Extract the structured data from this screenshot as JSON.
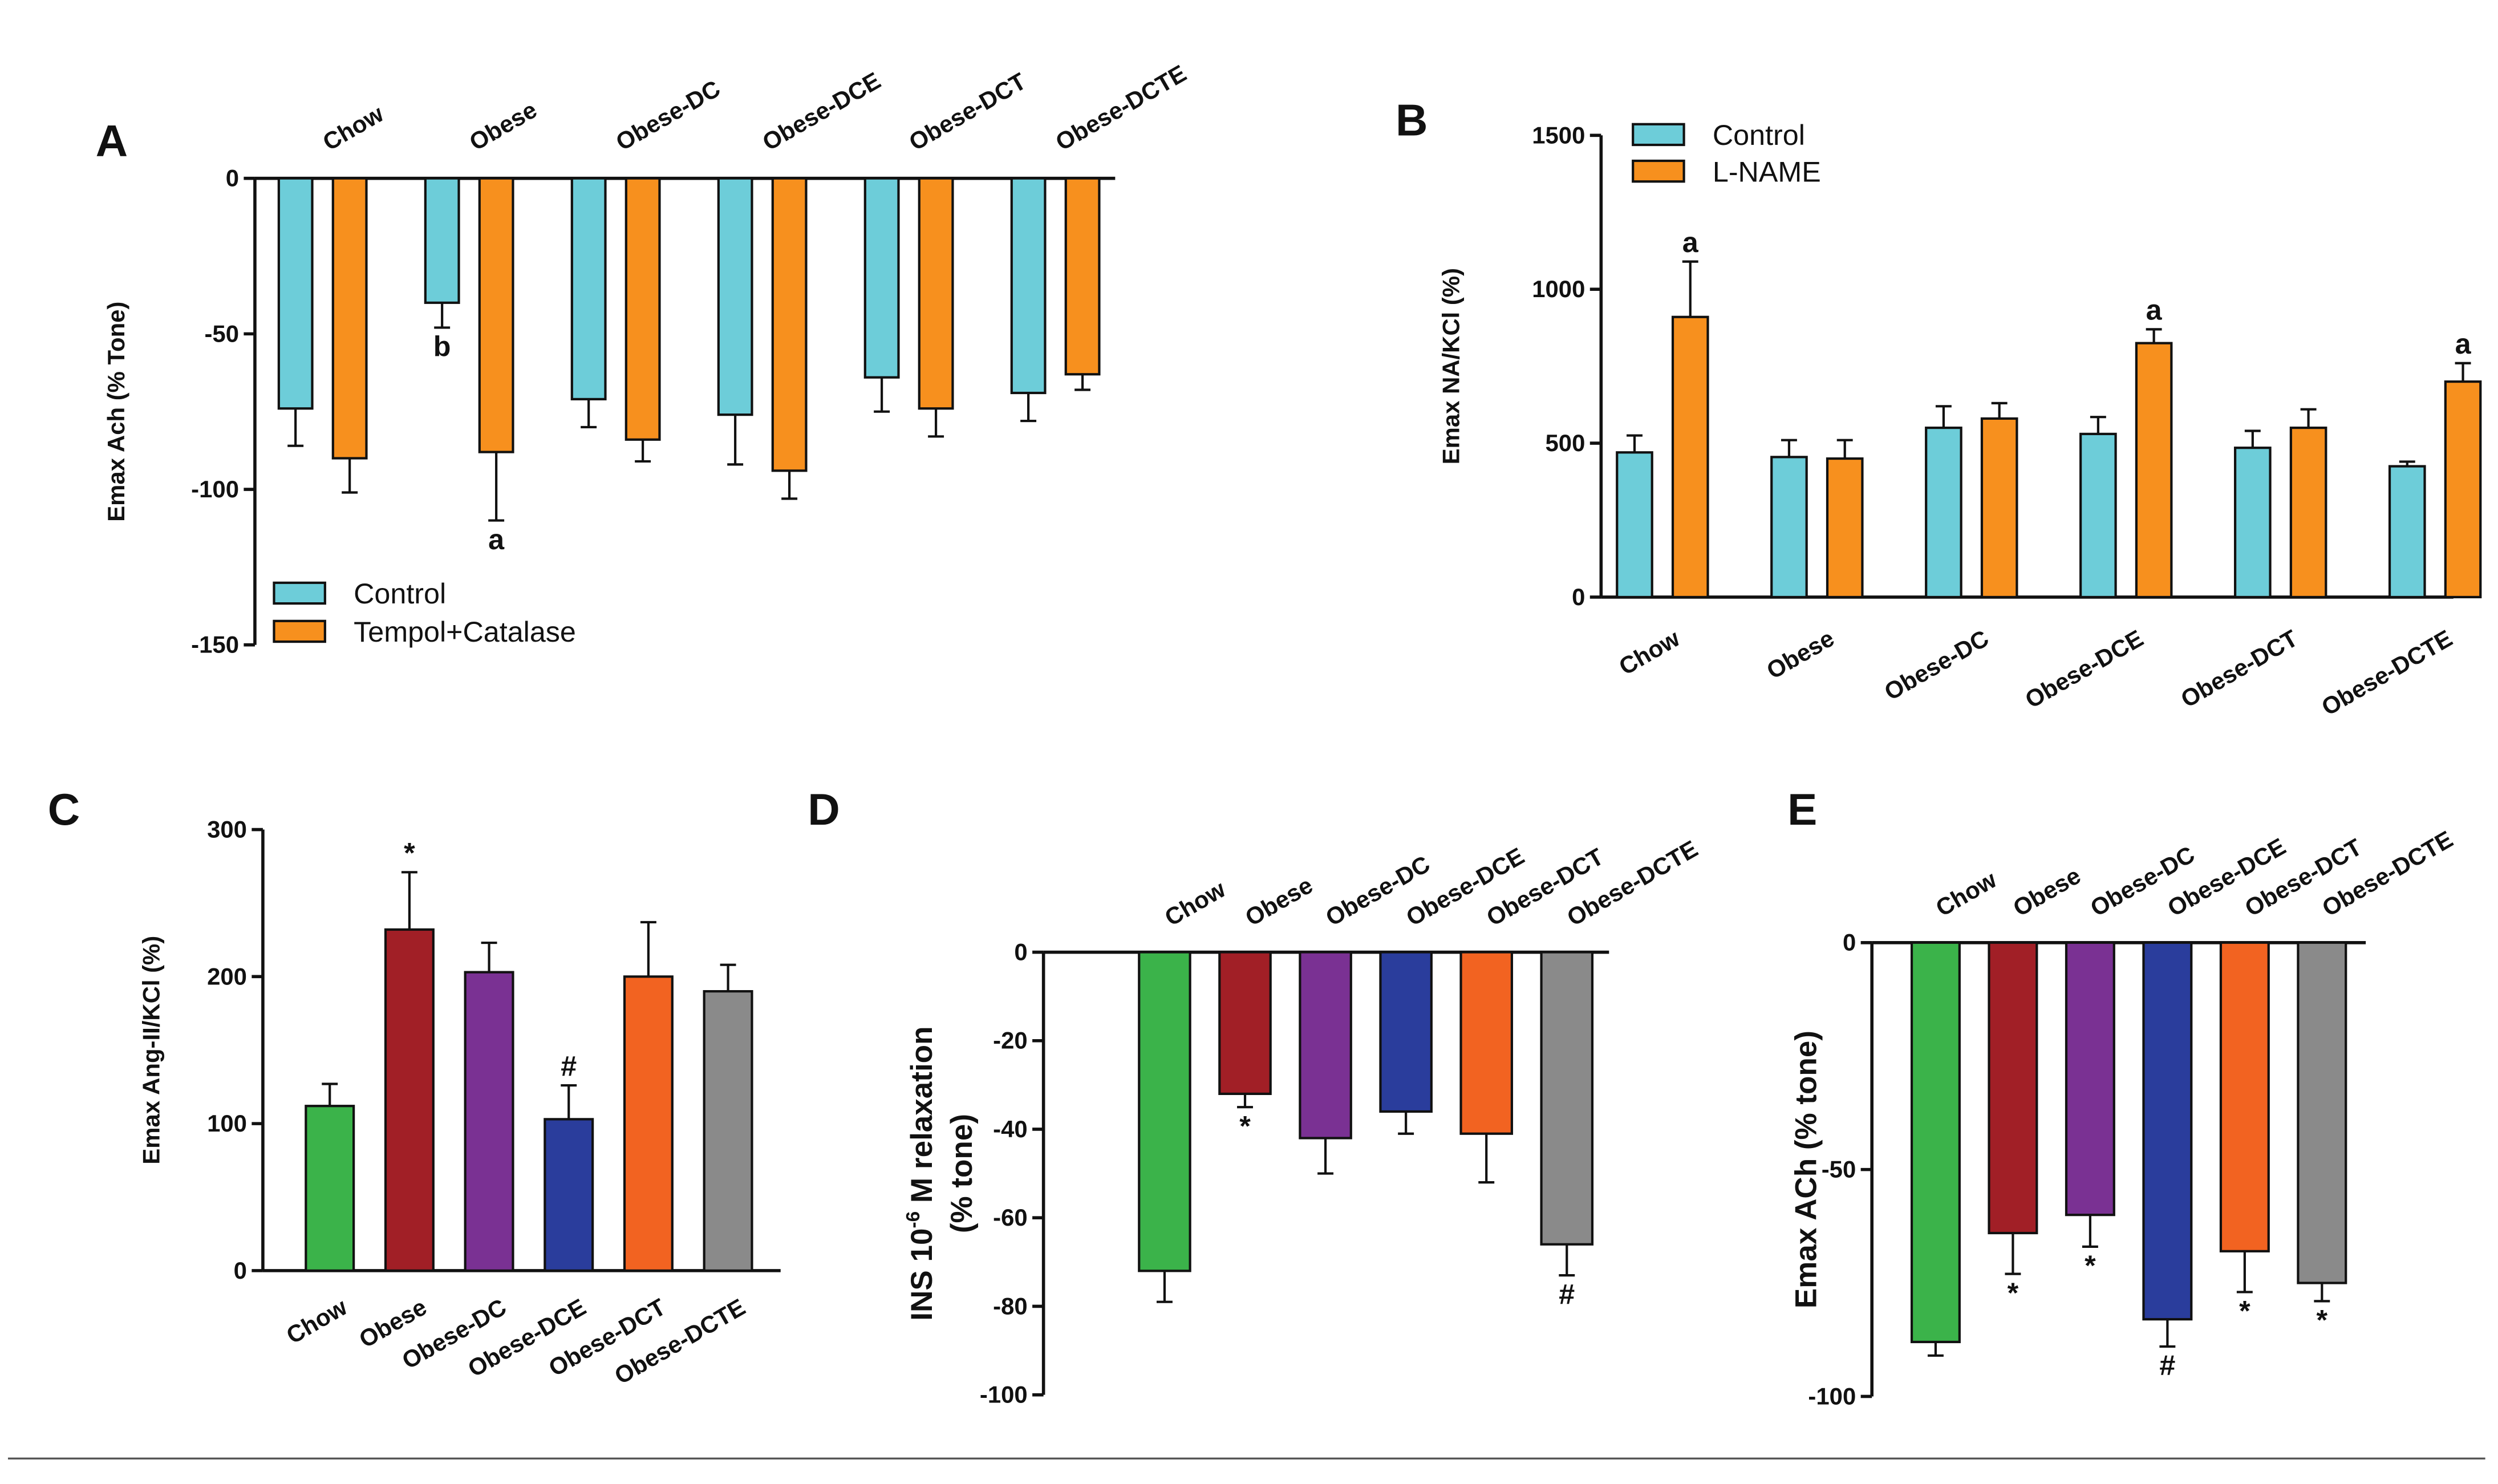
{
  "chart_data": [
    {
      "panel": "A",
      "type": "bar",
      "ylabel": "Emax Ach (% Tone)",
      "ylim": [
        -150,
        0
      ],
      "yticks": [
        0,
        -50,
        -100,
        -150
      ],
      "categories": [
        "Chow",
        "Obese",
        "Obese-DC",
        "Obese-DCE",
        "Obese-DCT",
        "Obese-DCTE"
      ],
      "legend_position": "bottom-left",
      "series": [
        {
          "name": "Control",
          "color": "#6dcdd9",
          "values": [
            -74,
            -40,
            -71,
            -76,
            -64,
            -69
          ],
          "errors": [
            12,
            8,
            9,
            16,
            11,
            9
          ],
          "annotations": [
            "",
            "b",
            "",
            "",
            "",
            ""
          ]
        },
        {
          "name": "Tempol+Catalase",
          "color": "#f7901e",
          "values": [
            -90,
            -88,
            -84,
            -94,
            -74,
            -63
          ],
          "errors": [
            11,
            22,
            7,
            9,
            9,
            5
          ],
          "annotations": [
            "",
            "a",
            "",
            "",
            "",
            ""
          ]
        }
      ]
    },
    {
      "panel": "B",
      "type": "bar",
      "ylabel": "Emax NA/KCl (%)",
      "ylim": [
        0,
        1500
      ],
      "yticks": [
        0,
        500,
        1000,
        1500
      ],
      "categories": [
        "Chow",
        "Obese",
        "Obese-DC",
        "Obese-DCE",
        "Obese-DCT",
        "Obese-DCTE"
      ],
      "legend_position": "top-left",
      "series": [
        {
          "name": "Control",
          "color": "#6dcdd9",
          "values": [
            470,
            455,
            550,
            530,
            485,
            425
          ],
          "errors": [
            55,
            55,
            70,
            55,
            55,
            15
          ],
          "annotations": [
            "",
            "",
            "",
            "",
            "",
            ""
          ]
        },
        {
          "name": "L-NAME",
          "color": "#f7901e",
          "values": [
            910,
            450,
            580,
            825,
            550,
            700
          ],
          "errors": [
            180,
            60,
            50,
            45,
            60,
            60
          ],
          "annotations": [
            "a",
            "",
            "",
            "a",
            "",
            "a"
          ]
        }
      ]
    },
    {
      "panel": "C",
      "type": "bar",
      "ylabel": "Emax Ang-II/KCl (%)",
      "ylim": [
        0,
        300
      ],
      "yticks": [
        0,
        100,
        200,
        300
      ],
      "categories": [
        "Chow",
        "Obese",
        "Obese-DC",
        "Obese-DCE",
        "Obese-DCT",
        "Obese-DCTE"
      ],
      "colors": [
        "#3bb34a",
        "#a11f26",
        "#7a3193",
        "#2a3d9c",
        "#f26321",
        "#8a8a8a"
      ],
      "values": [
        112,
        232,
        203,
        103,
        200,
        190
      ],
      "errors": [
        15,
        39,
        20,
        23,
        37,
        18
      ],
      "annotations": [
        "",
        "*",
        "",
        "#",
        "",
        ""
      ]
    },
    {
      "panel": "D",
      "type": "bar",
      "ylabel": [
        "INS 10",
        "-6",
        " M relaxation",
        "(% tone)"
      ],
      "ylim": [
        -100,
        0
      ],
      "yticks": [
        0,
        -20,
        -40,
        -60,
        -80,
        -100
      ],
      "categories": [
        "Chow",
        "Obese",
        "Obese-DC",
        "Obese-DCE",
        "Obese-DCT",
        "Obese-DCTE"
      ],
      "colors": [
        "#3bb34a",
        "#a11f26",
        "#7a3193",
        "#2a3d9c",
        "#f26321",
        "#8a8a8a"
      ],
      "values": [
        -72,
        -32,
        -42,
        -36,
        -41,
        -66
      ],
      "errors": [
        7,
        3,
        8,
        5,
        11,
        7
      ],
      "annotations": [
        "",
        "*",
        "",
        "",
        "",
        "#"
      ]
    },
    {
      "panel": "E",
      "type": "bar",
      "ylabel": "Emax ACh  (% tone)",
      "ylim": [
        -100,
        0
      ],
      "yticks": [
        0,
        -50,
        -100
      ],
      "categories": [
        "Chow",
        "Obese",
        "Obese-DC",
        "Obese-DCE",
        "Obese-DCT",
        "Obese-DCTE"
      ],
      "colors": [
        "#3bb34a",
        "#a11f26",
        "#7a3193",
        "#2a3d9c",
        "#f26321",
        "#8a8a8a"
      ],
      "values": [
        -88,
        -64,
        -60,
        -83,
        -68,
        -75
      ],
      "errors": [
        3,
        9,
        7,
        6,
        9,
        4
      ],
      "annotations": [
        "",
        "*",
        "*",
        "#",
        "*",
        "*"
      ]
    }
  ]
}
